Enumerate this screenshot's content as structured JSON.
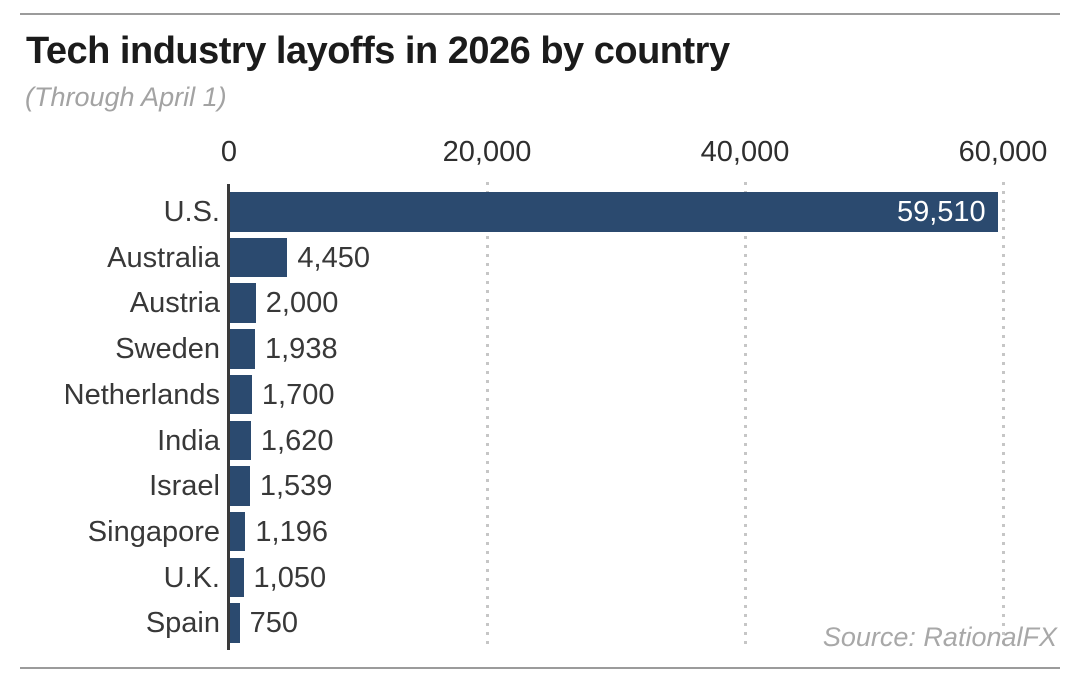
{
  "header": {
    "title": "Tech industry layoffs in 2026 by country",
    "subtitle": "(Through April 1)"
  },
  "footer": {
    "source": "Source: RationalFX"
  },
  "colors": {
    "bar": "#2b4a6f",
    "title_text": "#1b1b1b",
    "muted_text": "#a3a3a3",
    "label_text": "#383838",
    "axis": "#3a3a3a",
    "grid_dot": "#c6c6c6",
    "rule": "#9b9b9b",
    "value_inside_text": "#ffffff",
    "background": "#ffffff"
  },
  "chart_data": {
    "type": "bar",
    "orientation": "horizontal",
    "title": "Tech industry layoffs in 2026 by country",
    "subtitle": "(Through April 1)",
    "source": "Source: RationalFX",
    "categories": [
      "U.S.",
      "Australia",
      "Austria",
      "Sweden",
      "Netherlands",
      "India",
      "Israel",
      "Singapore",
      "U.K.",
      "Spain"
    ],
    "values": [
      59510,
      4450,
      2000,
      1938,
      1700,
      1620,
      1539,
      1196,
      1050,
      750
    ],
    "value_labels": [
      "59,510",
      "4,450",
      "2,000",
      "1,938",
      "1,700",
      "1,620",
      "1,539",
      "1,196",
      "1,050",
      "750"
    ],
    "xlabel": "",
    "ylabel": "",
    "xlim": [
      0,
      60000
    ],
    "xticks": [
      0,
      20000,
      40000,
      60000
    ],
    "xtick_labels": [
      "0",
      "20,000",
      "40,000",
      "60,000"
    ],
    "grid": "dotted-vertical",
    "legend": "none",
    "value_label_position": "outside-right, first bar inside-right in white"
  }
}
